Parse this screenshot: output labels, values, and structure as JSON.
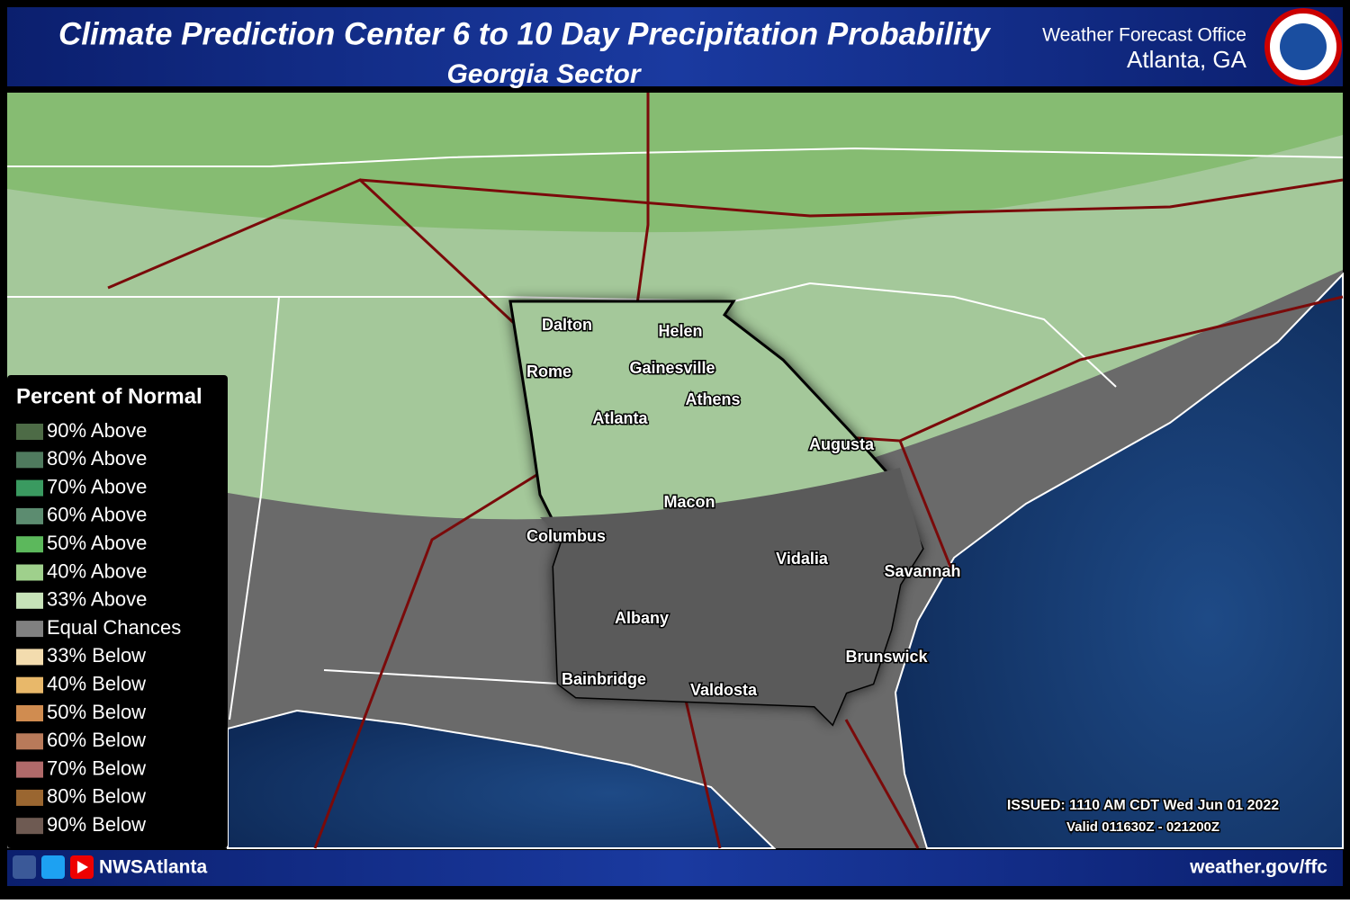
{
  "header": {
    "title": "Climate Prediction Center 6 to 10 Day Precipitation Probability",
    "subtitle": "Georgia Sector",
    "office_line1": "Weather Forecast Office",
    "office_line2": "Atlanta, GA"
  },
  "legend": {
    "title": "Percent of Normal",
    "items": [
      {
        "label": "90% Above",
        "color": "#4d6b46"
      },
      {
        "label": "80% Above",
        "color": "#4f7a5e"
      },
      {
        "label": "70% Above",
        "color": "#3a9a60"
      },
      {
        "label": "60% Above",
        "color": "#5c8c70"
      },
      {
        "label": "50% Above",
        "color": "#5cb85c"
      },
      {
        "label": "40% Above",
        "color": "#9fd08c"
      },
      {
        "label": "33% Above",
        "color": "#c6e2b8"
      },
      {
        "label": "Equal Chances",
        "color": "#808080"
      },
      {
        "label": "33% Below",
        "color": "#f3dcae"
      },
      {
        "label": "40% Below",
        "color": "#e8b86a"
      },
      {
        "label": "50% Below",
        "color": "#d08c50"
      },
      {
        "label": "60% Below",
        "color": "#b87a5a"
      },
      {
        "label": "70% Below",
        "color": "#b06a6a"
      },
      {
        "label": "80% Below",
        "color": "#9a6630"
      },
      {
        "label": "90% Below",
        "color": "#6e5a52"
      }
    ]
  },
  "cities": [
    {
      "label": "Dalton"
    },
    {
      "label": "Helen"
    },
    {
      "label": "Rome"
    },
    {
      "label": "Gainesville"
    },
    {
      "label": "Athens"
    },
    {
      "label": "Atlanta"
    },
    {
      "label": "Augusta"
    },
    {
      "label": "Macon"
    },
    {
      "label": "Columbus"
    },
    {
      "label": "Vidalia"
    },
    {
      "label": "Savannah"
    },
    {
      "label": "Albany"
    },
    {
      "label": "Brunswick"
    },
    {
      "label": "Bainbridge"
    },
    {
      "label": "Valdosta"
    }
  ],
  "issued": "ISSUED: 1110 AM CDT Wed Jun 01 2022",
  "valid": "Valid 011630Z - 021200Z",
  "footer": {
    "handle": "NWSAtlanta",
    "url": "weather.gov/ffc"
  }
}
